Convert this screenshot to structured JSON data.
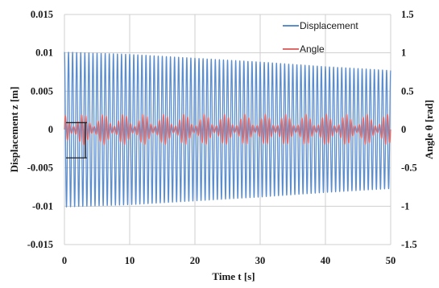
{
  "chart_data": {
    "type": "line",
    "xlabel": "Time t [s]",
    "ylabel_left": "Displacement z [m]",
    "ylabel_right": "Angle θ [rad]",
    "xlim": [
      0,
      50
    ],
    "ylim_left": [
      -0.015,
      0.015
    ],
    "ylim_right": [
      -1.5,
      1.5
    ],
    "x_ticks": [
      "0",
      "10",
      "20",
      "30",
      "40",
      "50"
    ],
    "y_ticks_left": [
      "0.015",
      "0.01",
      "0.005",
      "0",
      "-0.005",
      "-0.01",
      "-0.015"
    ],
    "y_ticks_right": [
      "1.5",
      "1",
      "0.5",
      "0",
      "-0.5",
      "-1",
      "-1.5"
    ],
    "grid": true,
    "legend_position": "top-right",
    "series": [
      {
        "name": "Displacement",
        "axis": "left",
        "color": "#5b8ed0",
        "frequency_hz": 1.6,
        "envelope": {
          "t": [
            0,
            10,
            20,
            30,
            40,
            50
          ],
          "amplitude": [
            0.0101,
            0.0098,
            0.0093,
            0.0088,
            0.0082,
            0.0077
          ]
        }
      },
      {
        "name": "Angle",
        "axis": "right",
        "color": "#e06a6a",
        "frequency_hz": 1.6,
        "beat_period_s": 3.1,
        "amplitude_range_rad": [
          0.04,
          0.2
        ]
      }
    ],
    "annotation": {
      "type": "bracket",
      "x": 3.2,
      "y_range_left": [
        -0.0037,
        0.0009
      ]
    }
  }
}
